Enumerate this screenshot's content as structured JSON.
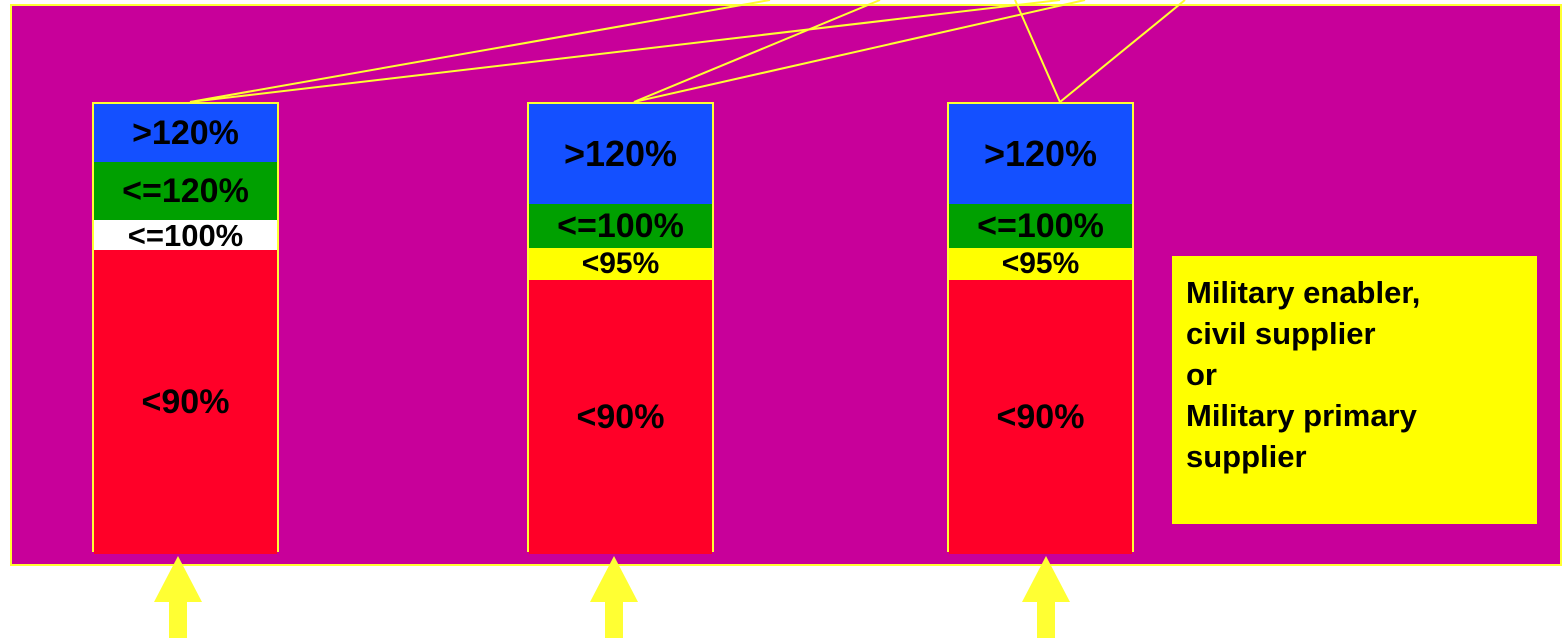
{
  "colors": {
    "panel_background": "#c8009a",
    "outline": "#ffff33",
    "arrow": "#ffff33",
    "legend_background": "#ffff00",
    "blue": "#1450ff",
    "green": "#00a000",
    "white": "#ffffff",
    "yellow": "#ffff00",
    "red": "#ff0028"
  },
  "columns": [
    {
      "segments": [
        {
          "label": ">120%",
          "color": "blue"
        },
        {
          "label": "<=120%",
          "color": "green"
        },
        {
          "label": "<=100%",
          "color": "white"
        },
        {
          "label": "<90%",
          "color": "red"
        }
      ]
    },
    {
      "segments": [
        {
          "label": ">120%",
          "color": "blue"
        },
        {
          "label": "<=100%",
          "color": "green"
        },
        {
          "label": "<95%",
          "color": "yellow"
        },
        {
          "label": "<90%",
          "color": "red"
        }
      ]
    },
    {
      "segments": [
        {
          "label": ">120%",
          "color": "blue"
        },
        {
          "label": "<=100%",
          "color": "green"
        },
        {
          "label": "<95%",
          "color": "yellow"
        },
        {
          "label": "<90%",
          "color": "red"
        }
      ]
    }
  ],
  "legend": {
    "lines": [
      "Military enabler,",
      "civil supplier",
      "or",
      "Military primary",
      "supplier"
    ]
  },
  "arrows": [
    {
      "icon": "up-arrow-icon"
    },
    {
      "icon": "up-arrow-icon"
    },
    {
      "icon": "up-arrow-icon"
    }
  ]
}
